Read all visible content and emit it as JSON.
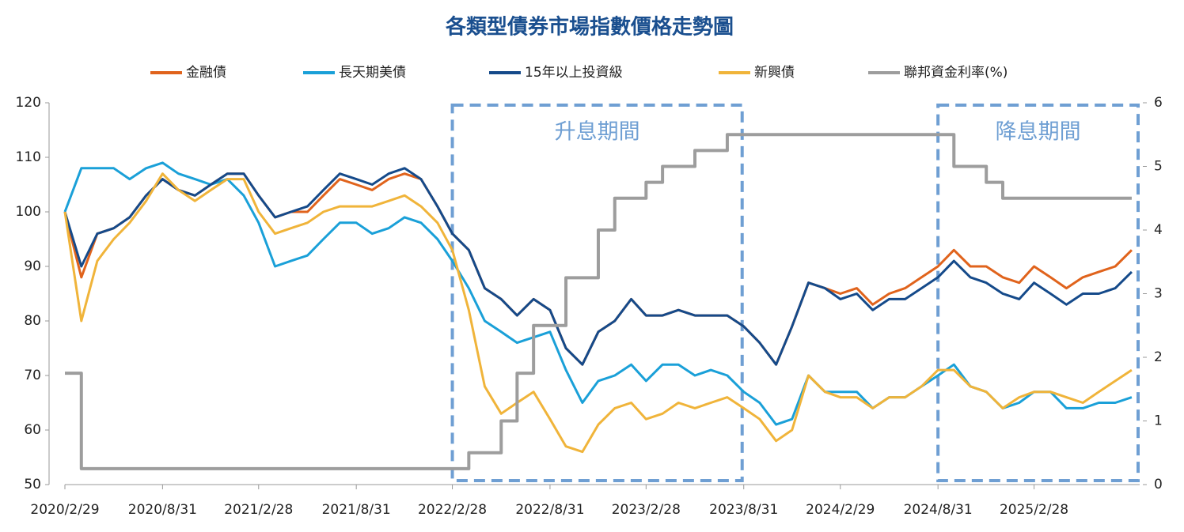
{
  "chart_data": {
    "type": "line",
    "title": "各類型債券市場指數價格走勢圖",
    "x": [
      "2020/2/29",
      "2020/3/31",
      "2020/4/30",
      "2020/5/31",
      "2020/6/30",
      "2020/7/31",
      "2020/8/31",
      "2020/9/30",
      "2020/10/31",
      "2020/11/30",
      "2020/12/31",
      "2021/1/31",
      "2021/2/28",
      "2021/3/31",
      "2021/4/30",
      "2021/5/31",
      "2021/6/30",
      "2021/7/31",
      "2021/8/31",
      "2021/9/30",
      "2021/10/31",
      "2021/11/30",
      "2021/12/31",
      "2022/1/31",
      "2022/2/28",
      "2022/3/31",
      "2022/4/30",
      "2022/5/31",
      "2022/6/30",
      "2022/7/31",
      "2022/8/31",
      "2022/9/30",
      "2022/10/31",
      "2022/11/30",
      "2022/12/31",
      "2023/1/31",
      "2023/2/28",
      "2023/3/31",
      "2023/4/30",
      "2023/5/31",
      "2023/6/30",
      "2023/7/31",
      "2023/8/31",
      "2023/9/30",
      "2023/10/31",
      "2023/11/30",
      "2023/12/31",
      "2024/1/31",
      "2024/2/29",
      "2024/3/31",
      "2024/4/30",
      "2024/5/31",
      "2024/6/30",
      "2024/7/31",
      "2024/8/31",
      "2024/9/30",
      "2024/10/31",
      "2024/11/30",
      "2024/12/31",
      "2025/1/31",
      "2025/2/28",
      "2025/3/31",
      "2025/4/30",
      "2025/5/31",
      "2025/6/30",
      "2025/7/31",
      "2025/8/31"
    ],
    "xlim": [
      "2020/2/29",
      "2025/9/15"
    ],
    "xticks": [
      "2020/2/29",
      "2020/8/31",
      "2021/2/28",
      "2021/8/31",
      "2022/2/28",
      "2022/8/31",
      "2023/2/28",
      "2023/8/31",
      "2024/2/29",
      "2024/8/31",
      "2025/2/28"
    ],
    "ylim": [
      50,
      120
    ],
    "yticks": [
      50,
      60,
      70,
      80,
      90,
      100,
      110,
      120
    ],
    "y2lim": [
      0,
      6
    ],
    "y2ticks": [
      0,
      1,
      2,
      3,
      4,
      5,
      6
    ],
    "series": [
      {
        "name": "金融債",
        "color": "#e0631c",
        "values": [
          100,
          88,
          96,
          97,
          99,
          103,
          106,
          104,
          103,
          105,
          107,
          107,
          103,
          99,
          100,
          100,
          103,
          106,
          105,
          104,
          106,
          107,
          106,
          101,
          96,
          93,
          86,
          84,
          81,
          84,
          82,
          75,
          72,
          78,
          80,
          84,
          81,
          81,
          82,
          81,
          81,
          81,
          79,
          76,
          72,
          79,
          87,
          86,
          85,
          86,
          83,
          85,
          86,
          88,
          90,
          93,
          90,
          90,
          88,
          87,
          90,
          88,
          86,
          88,
          89,
          90,
          93
        ]
      },
      {
        "name": "長天期美債",
        "color": "#1aa0d8",
        "values": [
          100,
          108,
          108,
          108,
          106,
          108,
          109,
          107,
          106,
          105,
          106,
          103,
          98,
          90,
          91,
          92,
          95,
          98,
          98,
          96,
          97,
          99,
          98,
          95,
          91,
          86,
          80,
          78,
          76,
          77,
          78,
          71,
          65,
          69,
          70,
          72,
          69,
          72,
          72,
          70,
          71,
          70,
          67,
          65,
          61,
          62,
          70,
          67,
          67,
          67,
          64,
          66,
          66,
          68,
          70,
          72,
          68,
          67,
          64,
          65,
          67,
          67,
          64,
          64,
          65,
          65,
          66
        ]
      },
      {
        "name": "15年以上投資級",
        "color": "#154a8a",
        "values": [
          100,
          90,
          96,
          97,
          99,
          103,
          106,
          104,
          103,
          105,
          107,
          107,
          103,
          99,
          100,
          101,
          104,
          107,
          106,
          105,
          107,
          108,
          106,
          101,
          96,
          93,
          86,
          84,
          81,
          84,
          82,
          75,
          72,
          78,
          80,
          84,
          81,
          81,
          82,
          81,
          81,
          81,
          79,
          76,
          72,
          79,
          87,
          86,
          84,
          85,
          82,
          84,
          84,
          86,
          88,
          91,
          88,
          87,
          85,
          84,
          87,
          85,
          83,
          85,
          85,
          86,
          89
        ]
      },
      {
        "name": "新興債",
        "color": "#f0b43a",
        "values": [
          100,
          80,
          91,
          95,
          98,
          102,
          107,
          104,
          102,
          104,
          106,
          106,
          100,
          96,
          97,
          98,
          100,
          101,
          101,
          101,
          102,
          103,
          101,
          98,
          93,
          82,
          68,
          63,
          65,
          67,
          62,
          57,
          56,
          61,
          64,
          65,
          62,
          63,
          65,
          64,
          65,
          66,
          64,
          62,
          58,
          60,
          70,
          67,
          66,
          66,
          64,
          66,
          66,
          68,
          71,
          71,
          68,
          67,
          64,
          66,
          67,
          67,
          66,
          65,
          67,
          69,
          71
        ]
      },
      {
        "name": "聯邦資金利率(%)",
        "color": "#9d9d9d",
        "axis": "y2",
        "step": true,
        "values": [
          1.75,
          0.25,
          0.25,
          0.25,
          0.25,
          0.25,
          0.25,
          0.25,
          0.25,
          0.25,
          0.25,
          0.25,
          0.25,
          0.25,
          0.25,
          0.25,
          0.25,
          0.25,
          0.25,
          0.25,
          0.25,
          0.25,
          0.25,
          0.25,
          0.25,
          0.5,
          0.5,
          1.0,
          1.75,
          2.5,
          2.5,
          3.25,
          3.25,
          4.0,
          4.5,
          4.5,
          4.75,
          5.0,
          5.0,
          5.25,
          5.25,
          5.5,
          5.5,
          5.5,
          5.5,
          5.5,
          5.5,
          5.5,
          5.5,
          5.5,
          5.5,
          5.5,
          5.5,
          5.5,
          5.5,
          5.0,
          5.0,
          4.75,
          4.5,
          4.5,
          4.5,
          4.5,
          4.5,
          4.5,
          4.5,
          4.5,
          4.5
        ]
      }
    ],
    "annotations": [
      {
        "text": "升息期間",
        "x": [
          "2022/2/28",
          "2023/8/31"
        ]
      },
      {
        "text": "降息期間",
        "x": [
          "2024/8/31",
          "2025/9/15"
        ]
      }
    ]
  }
}
